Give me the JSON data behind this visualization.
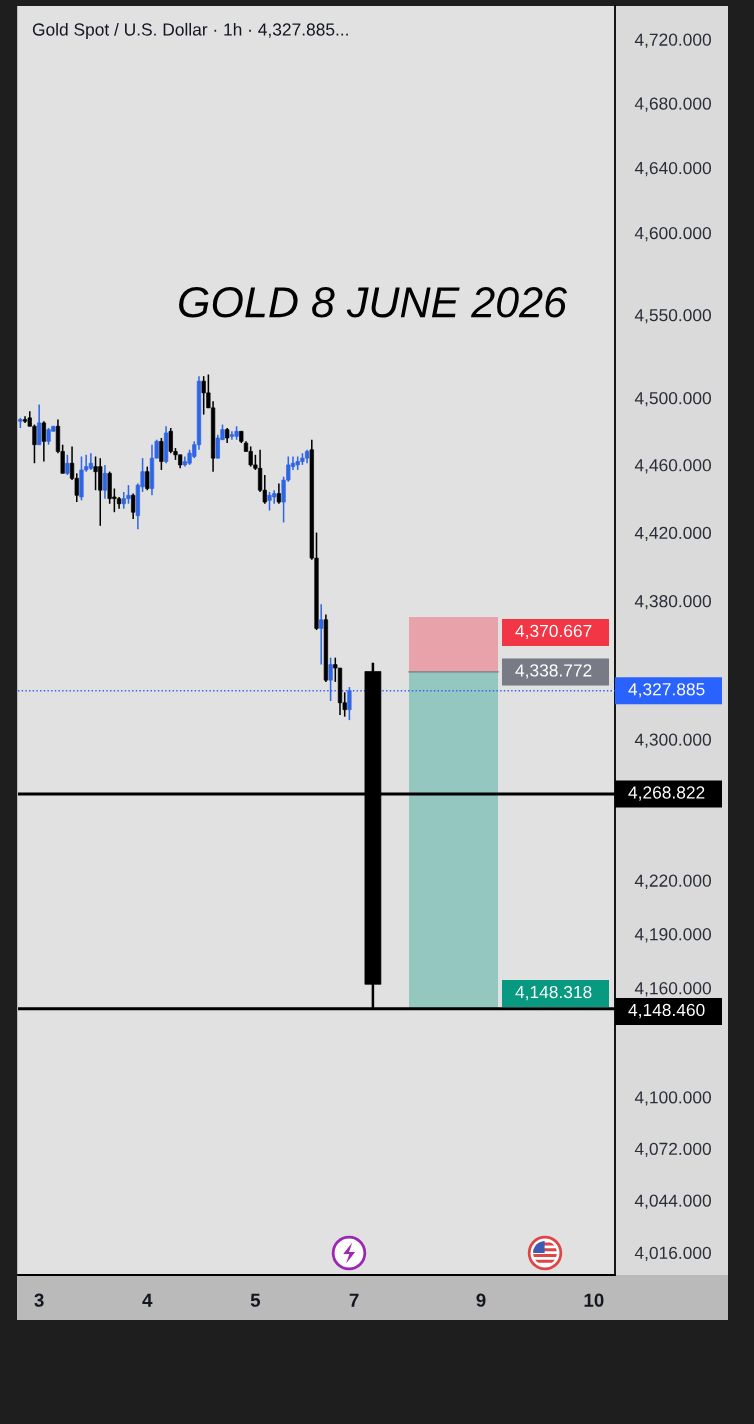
{
  "chart_data": {
    "type": "candlestick",
    "title": "Gold Spot / U.S. Dollar · 1h · 4,327.885...",
    "annotations": [
      "GOLD 8 JUNE 2026"
    ],
    "categories": [
      null,
      null,
      null,
      null,
      "3",
      null,
      null,
      null,
      null,
      null,
      null,
      null,
      null,
      null,
      null,
      null,
      null,
      null,
      null,
      null,
      null,
      null,
      null,
      null,
      null,
      null,
      null,
      "4",
      null,
      null,
      null,
      null,
      null,
      null,
      null,
      null,
      null,
      null,
      null,
      null,
      null,
      null,
      null,
      null,
      null,
      null,
      null,
      null,
      null,
      null,
      "5",
      null,
      null,
      null,
      null,
      null,
      null,
      null,
      null,
      null,
      null,
      null,
      null,
      null,
      null,
      null,
      null,
      null,
      null,
      null,
      null,
      "7",
      null,
      null,
      null,
      null,
      null,
      null,
      null,
      null,
      null,
      null,
      null,
      null,
      null,
      null,
      null,
      null,
      null,
      null,
      null,
      null,
      null,
      null,
      null,
      null,
      null,
      null,
      "9",
      null,
      null,
      null,
      null,
      null,
      null,
      null,
      null,
      null,
      null,
      null,
      null,
      null,
      null,
      null,
      null,
      null,
      null,
      null,
      null,
      null,
      null,
      null,
      "10",
      null,
      null,
      null,
      null
    ],
    "series": [
      {
        "ohlc": [
          [
            4486,
            4488,
            4482,
            4487
          ],
          [
            4487,
            4489,
            4485,
            4486
          ],
          [
            4488,
            4492,
            4483,
            4483
          ],
          [
            4483,
            4484,
            4461,
            4472
          ],
          [
            4472,
            4496,
            4472,
            4485
          ],
          [
            4485,
            4486,
            4462,
            4474
          ],
          [
            4474,
            4482,
            4472,
            4481
          ],
          [
            4480,
            4483,
            4480,
            4483
          ],
          [
            4483,
            4487,
            4467,
            4468
          ],
          [
            4468,
            4472,
            4455,
            4455
          ],
          [
            4455,
            4466,
            4454,
            4461
          ],
          [
            4461,
            4471,
            4451,
            4452
          ],
          [
            4452,
            4455,
            4438,
            4442
          ],
          [
            4441,
            4465,
            4439,
            4457
          ],
          [
            4457,
            4466,
            4456,
            4459
          ],
          [
            4458,
            4467,
            4457,
            4461
          ],
          [
            4459,
            4465,
            4445,
            4456
          ],
          [
            4459,
            4464,
            4424,
            4445
          ],
          [
            4445,
            4460,
            4440,
            4455
          ],
          [
            4455,
            4456,
            4437,
            4440
          ],
          [
            4441,
            4446,
            4432,
            4440
          ],
          [
            4440,
            4441,
            4434,
            4437
          ],
          [
            4437,
            4444,
            4434,
            4440
          ],
          [
            4440,
            4448,
            4437,
            4442
          ],
          [
            4442,
            4443,
            4428,
            4432
          ],
          [
            4430,
            4449,
            4422,
            4448
          ],
          [
            4447,
            4464,
            4444,
            4456
          ],
          [
            4456,
            4459,
            4445,
            4446
          ],
          [
            4446,
            4472,
            4442,
            4464
          ],
          [
            4464,
            4475,
            4464,
            4474
          ],
          [
            4474,
            4476,
            4457,
            4462
          ],
          [
            4462,
            4483,
            4461,
            4479
          ],
          [
            4480,
            4482,
            4467,
            4468
          ],
          [
            4468,
            4470,
            4463,
            4466
          ],
          [
            4466,
            4466,
            4458,
            4460
          ],
          [
            4460,
            4465,
            4459,
            4462
          ],
          [
            4461,
            4469,
            4460,
            4467
          ],
          [
            4465,
            4474,
            4464,
            4472
          ],
          [
            4472,
            4513,
            4469,
            4510
          ],
          [
            4510,
            4513,
            4490,
            4503
          ],
          [
            4503,
            4514,
            4494,
            4494
          ],
          [
            4494,
            4498,
            4456,
            4464
          ],
          [
            4464,
            4478,
            4464,
            4476
          ],
          [
            4475,
            4484,
            4475,
            4481
          ],
          [
            4481,
            4482,
            4473,
            4476
          ],
          [
            4477,
            4480,
            4475,
            4478
          ],
          [
            4477,
            4483,
            4475,
            4480
          ],
          [
            4480,
            4480,
            4473,
            4474
          ],
          [
            4473,
            4474,
            4468,
            4468
          ],
          [
            4468,
            4471,
            4459,
            4460
          ],
          [
            4460,
            4466,
            4457,
            4458
          ],
          [
            4458,
            4469,
            4444,
            4445
          ],
          [
            4445,
            4454,
            4437,
            4438
          ],
          [
            4439,
            4444,
            4433,
            4442
          ],
          [
            4441,
            4445,
            4437,
            4443
          ],
          [
            4443,
            4449,
            4437,
            4438
          ],
          [
            4438,
            4453,
            4426,
            4451
          ],
          [
            4451,
            4465,
            4450,
            4460
          ],
          [
            4459,
            4465,
            4457,
            4461
          ],
          [
            4460,
            4465,
            4457,
            4462
          ],
          [
            4462,
            4467,
            4460,
            4464
          ],
          [
            4464,
            4469,
            4461,
            4468
          ],
          [
            4469,
            4475,
            4404,
            4405
          ],
          [
            4405,
            4420,
            4363,
            4364
          ],
          [
            4364,
            4378,
            4343,
            4369
          ],
          [
            4369,
            4372,
            4333,
            4334
          ],
          [
            4334,
            4347,
            4322,
            4343
          ],
          [
            4343,
            4347,
            4333,
            4341
          ],
          [
            4341,
            4341,
            4314,
            4321
          ],
          [
            4321,
            4327,
            4313,
            4317
          ],
          [
            4317,
            4330,
            4311,
            4328
          ],
          null,
          null,
          null,
          null,
          null,
          null,
          null,
          null,
          null,
          null,
          null,
          null,
          null,
          null,
          null,
          null,
          null,
          null,
          null,
          null,
          null,
          null,
          null,
          null,
          null,
          null,
          null,
          null,
          null,
          null,
          null,
          null,
          null,
          null,
          null,
          null,
          null,
          null,
          null,
          null,
          null,
          null,
          null,
          null,
          null,
          null,
          null,
          null,
          null,
          null,
          null,
          null,
          null,
          null,
          null,
          null
        ],
        "colors": [
          "#2f66e6",
          "#000000",
          "#000000",
          "#000000",
          "#2f66e6",
          "#000000",
          "#2f66e6",
          "#2f66e6",
          "#000000",
          "#000000",
          "#2f66e6",
          "#000000",
          "#000000",
          "#2f66e6",
          "#2f66e6",
          "#2f66e6",
          "#000000",
          "#000000",
          "#2f66e6",
          "#000000",
          "#000000",
          "#000000",
          "#2f66e6",
          "#2f66e6",
          "#000000",
          "#2f66e6",
          "#2f66e6",
          "#000000",
          "#2f66e6",
          "#2f66e6",
          "#000000",
          "#2f66e6",
          "#000000",
          "#000000",
          "#000000",
          "#2f66e6",
          "#2f66e6",
          "#2f66e6",
          "#2f66e6",
          "#000000",
          "#000000",
          "#000000",
          "#2f66e6",
          "#2f66e6",
          "#000000",
          "#2f66e6",
          "#2f66e6",
          "#000000",
          "#000000",
          "#000000",
          "#000000",
          "#000000",
          "#000000",
          "#2f66e6",
          "#2f66e6",
          "#000000",
          "#2f66e6",
          "#2f66e6",
          "#2f66e6",
          "#2f66e6",
          "#2f66e6",
          "#2f66e6",
          "#000000",
          "#000000",
          "#2f66e6",
          "#000000",
          "#2f66e6",
          "#000000",
          "#000000",
          "#000000",
          "#2f66e6",
          null,
          null,
          null,
          null,
          null,
          null,
          null,
          null,
          null,
          null,
          null,
          null,
          null,
          null,
          null,
          null,
          null,
          null,
          null,
          null,
          null,
          null,
          null,
          null,
          null,
          null,
          null,
          null,
          null,
          null,
          null,
          null,
          null,
          null,
          null,
          null,
          null,
          null,
          null,
          null,
          null,
          null,
          null,
          null,
          null,
          null,
          null,
          null,
          null,
          null,
          null,
          null,
          null,
          null,
          null,
          null
        ]
      },
      {
        "ohlc": [
          null,
          null,
          null,
          null,
          null,
          null,
          null,
          null,
          null,
          null,
          null,
          null,
          null,
          null,
          null,
          null,
          null,
          null,
          null,
          null,
          null,
          null,
          null,
          null,
          null,
          null,
          null,
          null,
          null,
          null,
          null,
          null,
          null,
          null,
          null,
          null,
          null,
          null,
          null,
          null,
          null,
          null,
          null,
          null,
          null,
          null,
          null,
          null,
          null,
          null,
          null,
          null,
          null,
          null,
          null,
          null,
          null,
          null,
          null,
          null,
          null,
          null,
          null,
          null,
          null,
          null,
          null,
          null,
          null,
          null,
          null,
          null,
          null,
          null,
          null,
          [
            4339,
            4344,
            4148,
            4162
          ],
          null,
          null,
          null,
          null,
          null,
          null,
          null,
          null,
          null,
          null,
          null,
          null,
          null,
          null,
          null,
          null,
          null,
          null,
          null,
          null,
          null,
          null,
          null,
          null,
          null,
          null,
          null,
          null,
          null,
          null,
          null,
          null,
          null,
          null,
          null,
          null,
          null,
          null,
          null,
          null,
          null,
          null,
          null,
          null,
          null,
          null,
          null,
          null,
          null,
          null,
          null
        ],
        "color": "#000000"
      }
    ],
    "log": true,
    "ylim": [
      4004,
      4741
    ],
    "yticks": [
      {
        "value": 4720,
        "label": "4,720.000"
      },
      {
        "value": 4680,
        "label": "4,680.000"
      },
      {
        "value": 4640,
        "label": "4,640.000"
      },
      {
        "value": 4600,
        "label": "4,600.000"
      },
      {
        "value": 4550,
        "label": "4,550.000"
      },
      {
        "value": 4500,
        "label": "4,500.000"
      },
      {
        "value": 4460,
        "label": "4,460.000"
      },
      {
        "value": 4420,
        "label": "4,420.000"
      },
      {
        "value": 4380,
        "label": "4,380.000"
      },
      {
        "value": 4300,
        "label": "4,300.000"
      },
      {
        "value": 4220,
        "label": "4,220.000"
      },
      {
        "value": 4190,
        "label": "4,190.000"
      },
      {
        "value": 4160,
        "label": "4,160.000"
      },
      {
        "value": 4100,
        "label": "4,100.000"
      },
      {
        "value": 4072,
        "label": "4,072.000"
      },
      {
        "value": 4044,
        "label": "4,044.000"
      },
      {
        "value": 4016,
        "label": "4,016.000"
      }
    ],
    "ref_lines": [
      {
        "axis": "y",
        "value": 4338.772,
        "label": "4,338.772",
        "color": "#787b86"
      },
      {
        "axis": "y",
        "value": 4327.885,
        "label": "4,327.885",
        "color": "#2962ff",
        "line_style": "dotted"
      },
      {
        "axis": "y",
        "value": 4268.822,
        "label": "4,268.822",
        "color": "#000000"
      },
      {
        "axis": "y",
        "value": 4148.46,
        "label": "4,148.460",
        "color": "#000000"
      }
    ],
    "bands": [
      {
        "axis": "y",
        "from": 4338.772,
        "to": 4370.667,
        "label": "4,370.667",
        "color": "#f23645"
      },
      {
        "axis": "y",
        "from": 4148.318,
        "to": 4338.772,
        "label": "4,148.318",
        "color": "#089981"
      }
    ]
  }
}
